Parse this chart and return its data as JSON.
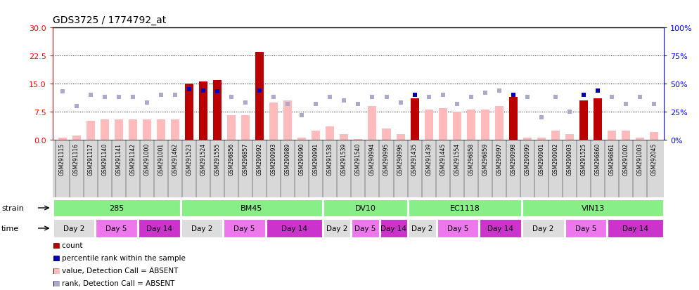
{
  "title": "GDS3725 / 1774792_at",
  "samples": [
    "GSM291115",
    "GSM291116",
    "GSM291117",
    "GSM291140",
    "GSM291141",
    "GSM291142",
    "GSM291000",
    "GSM291001",
    "GSM291462",
    "GSM291523",
    "GSM291524",
    "GSM291555",
    "GSM296856",
    "GSM296857",
    "GSM290992",
    "GSM290993",
    "GSM290989",
    "GSM290990",
    "GSM290991",
    "GSM291538",
    "GSM291539",
    "GSM291540",
    "GSM290994",
    "GSM290995",
    "GSM290996",
    "GSM291435",
    "GSM291439",
    "GSM291445",
    "GSM291554",
    "GSM296858",
    "GSM296859",
    "GSM290997",
    "GSM290998",
    "GSM290999",
    "GSM290901",
    "GSM290902",
    "GSM290903",
    "GSM291525",
    "GSM296860",
    "GSM296861",
    "GSM291002",
    "GSM291003",
    "GSM292045"
  ],
  "count_values": [
    0.5,
    1.2,
    5.0,
    5.5,
    5.5,
    5.5,
    5.5,
    5.5,
    5.5,
    15.0,
    15.5,
    16.0,
    6.5,
    6.5,
    23.5,
    10.0,
    10.5,
    0.5,
    2.5,
    3.5,
    1.5,
    0.2,
    9.0,
    3.0,
    1.5,
    11.0,
    8.0,
    8.5,
    7.5,
    8.0,
    8.0,
    9.0,
    11.5,
    0.5,
    0.5,
    2.5,
    1.5,
    10.5,
    11.0,
    2.5,
    2.5,
    0.5,
    2.0
  ],
  "count_present": [
    false,
    false,
    false,
    false,
    false,
    false,
    false,
    false,
    false,
    true,
    true,
    true,
    false,
    false,
    true,
    false,
    false,
    false,
    false,
    false,
    false,
    false,
    false,
    false,
    false,
    true,
    false,
    false,
    false,
    false,
    false,
    false,
    true,
    false,
    false,
    false,
    false,
    true,
    true,
    false,
    false,
    false,
    false
  ],
  "rank_values": [
    43,
    30,
    40,
    38,
    38,
    38,
    33,
    40,
    40,
    45,
    44,
    43,
    38,
    33,
    44,
    38,
    32,
    22,
    32,
    38,
    35,
    32,
    38,
    38,
    33,
    40,
    38,
    40,
    32,
    38,
    42,
    44,
    40,
    38,
    20,
    38,
    25,
    40,
    44,
    38,
    32,
    38,
    32
  ],
  "rank_present": [
    false,
    false,
    false,
    false,
    false,
    false,
    false,
    false,
    false,
    true,
    true,
    true,
    false,
    false,
    true,
    false,
    false,
    false,
    false,
    false,
    false,
    false,
    false,
    false,
    false,
    true,
    false,
    false,
    false,
    false,
    false,
    false,
    true,
    false,
    false,
    false,
    false,
    true,
    true,
    false,
    false,
    false,
    false
  ],
  "strains": [
    {
      "label": "285",
      "start": 0,
      "end": 9
    },
    {
      "label": "BM45",
      "start": 9,
      "end": 19
    },
    {
      "label": "DV10",
      "start": 19,
      "end": 25
    },
    {
      "label": "EC1118",
      "start": 25,
      "end": 33
    },
    {
      "label": "VIN13",
      "start": 33,
      "end": 43
    }
  ],
  "time_groups": [
    {
      "label": "Day 2",
      "start": 0,
      "end": 3
    },
    {
      "label": "Day 5",
      "start": 3,
      "end": 6
    },
    {
      "label": "Day 14",
      "start": 6,
      "end": 9
    },
    {
      "label": "Day 2",
      "start": 9,
      "end": 12
    },
    {
      "label": "Day 5",
      "start": 12,
      "end": 15
    },
    {
      "label": "Day 14",
      "start": 15,
      "end": 19
    },
    {
      "label": "Day 2",
      "start": 19,
      "end": 21
    },
    {
      "label": "Day 5",
      "start": 21,
      "end": 23
    },
    {
      "label": "Day 14",
      "start": 23,
      "end": 25
    },
    {
      "label": "Day 2",
      "start": 25,
      "end": 27
    },
    {
      "label": "Day 5",
      "start": 27,
      "end": 30
    },
    {
      "label": "Day 14",
      "start": 30,
      "end": 33
    },
    {
      "label": "Day 2",
      "start": 33,
      "end": 36
    },
    {
      "label": "Day 5",
      "start": 36,
      "end": 39
    },
    {
      "label": "Day 14",
      "start": 39,
      "end": 43
    }
  ],
  "ylim_left": [
    0,
    30
  ],
  "ylim_right": [
    0,
    100
  ],
  "yticks_left": [
    0,
    7.5,
    15,
    22.5,
    30
  ],
  "yticks_right": [
    0,
    25,
    50,
    75,
    100
  ],
  "color_present_bar": "#bb0000",
  "color_absent_bar": "#ffbbbb",
  "color_present_rank": "#0000bb",
  "color_absent_rank": "#aaaacc",
  "strain_bg": "#88ee88",
  "time_day2_bg": "#dddddd",
  "time_day5_bg": "#ee77ee",
  "time_day14_bg": "#cc33cc",
  "label_bg": "#d8d8d8",
  "legend_items": [
    {
      "color": "#bb0000",
      "label": "count"
    },
    {
      "color": "#0000bb",
      "label": "percentile rank within the sample"
    },
    {
      "color": "#ffbbbb",
      "label": "value, Detection Call = ABSENT"
    },
    {
      "color": "#aaaacc",
      "label": "rank, Detection Call = ABSENT"
    }
  ]
}
